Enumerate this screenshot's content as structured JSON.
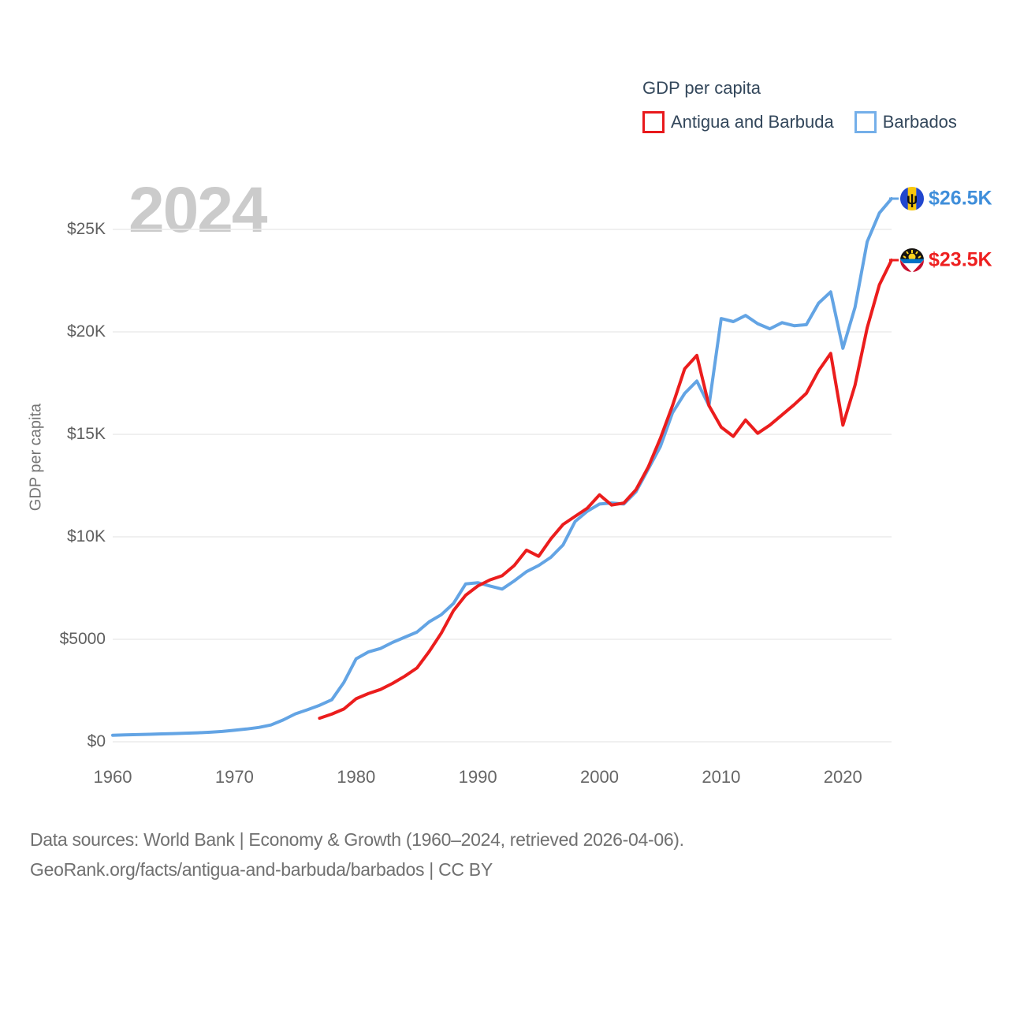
{
  "watermark": "2024",
  "y_axis_title": "GDP per capita",
  "legend": {
    "title": "GDP per capita",
    "items": [
      {
        "label": "Antigua and Barbuda",
        "color": "#e8191c"
      },
      {
        "label": "Barbados",
        "color": "#74afe9"
      }
    ]
  },
  "footer": {
    "line1": "Data sources: World Bank | Economy & Growth (1960–2024, retrieved 2026-04-06).",
    "line2": "GeoRank.org/facts/antigua-and-barbuda/barbados | CC BY"
  },
  "chart_data": {
    "type": "line",
    "title": "GDP per capita",
    "xlabel": "",
    "ylabel": "GDP per capita",
    "x_range": [
      1960,
      2024
    ],
    "y_range_usd": [
      0,
      26500
    ],
    "grid": true,
    "legend_position": "top-right",
    "x_ticks": [
      1960,
      1970,
      1980,
      1990,
      2000,
      2010,
      2020
    ],
    "y_ticks": [
      {
        "value": 0,
        "label": "$0"
      },
      {
        "value": 5000,
        "label": "$5000"
      },
      {
        "value": 10000,
        "label": "$10K"
      },
      {
        "value": 15000,
        "label": "$15K"
      },
      {
        "value": 20000,
        "label": "$20K"
      },
      {
        "value": 25000,
        "label": "$25K"
      }
    ],
    "series": [
      {
        "name": "Antigua and Barbuda",
        "color": "#eb1d1d",
        "end_label": "$23.5K",
        "end_label_color": "#ee2020",
        "flag": "antigua-and-barbuda",
        "start_year": 1977,
        "values_usd": [
          1150,
          1350,
          1600,
          2100,
          2350,
          2550,
          2850,
          3200,
          3600,
          4400,
          5300,
          6400,
          7150,
          7600,
          7900,
          8100,
          8600,
          9350,
          9050,
          9900,
          10600,
          11000,
          11400,
          12050,
          11550,
          11650,
          12300,
          13400,
          14800,
          16400,
          18200,
          18850,
          16400,
          15350,
          14900,
          15700,
          15050,
          15450,
          15950,
          16450,
          17000,
          18100,
          18950,
          15450,
          17400,
          20200,
          22300,
          23500
        ]
      },
      {
        "name": "Barbados",
        "color": "#63a4e4",
        "end_label": "$26.5K",
        "end_label_color": "#3f8eda",
        "flag": "barbados",
        "start_year": 1960,
        "values_usd": [
          320,
          335,
          350,
          365,
          385,
          400,
          420,
          440,
          465,
          505,
          560,
          625,
          700,
          820,
          1060,
          1360,
          1560,
          1780,
          2050,
          2900,
          4050,
          4380,
          4550,
          4850,
          5100,
          5350,
          5850,
          6200,
          6750,
          7700,
          7760,
          7600,
          7450,
          7850,
          8300,
          8600,
          9000,
          9600,
          10750,
          11250,
          11600,
          11650,
          11600,
          12200,
          13300,
          14400,
          16050,
          17000,
          17600,
          16400,
          20650,
          20500,
          20800,
          20400,
          20150,
          20450,
          20300,
          20350,
          21400,
          21950,
          19200,
          21200,
          24400,
          25800,
          26500
        ]
      }
    ]
  }
}
